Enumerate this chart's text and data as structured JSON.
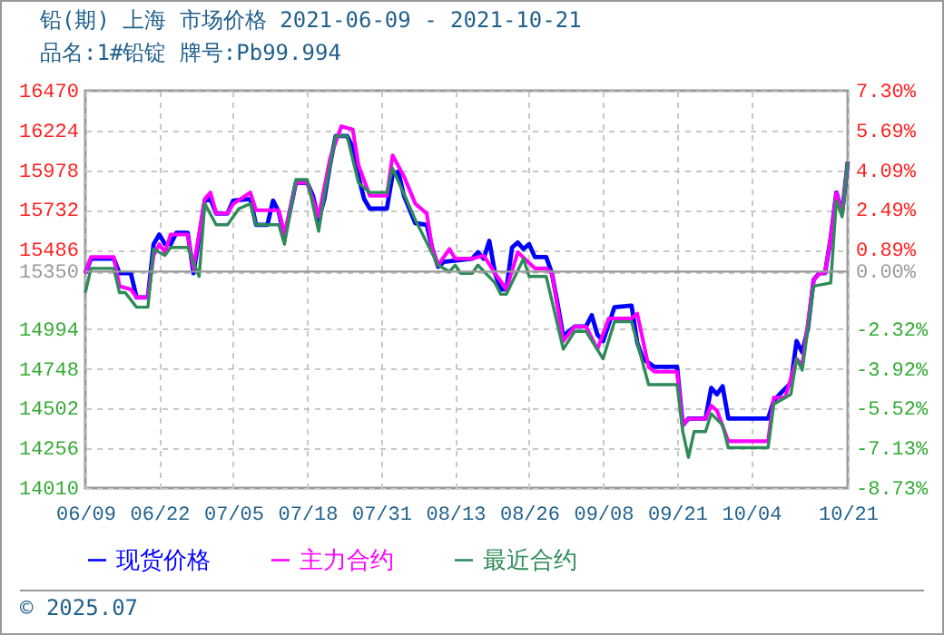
{
  "chart_data": {
    "type": "line",
    "title": "铅(期) 上海 市场价格 2021-06-09 - 2021-10-21",
    "subtitle": "品名:1#铅锭 牌号:Pb99.994",
    "xlim": [
      "2021-06-09",
      "2021-10-21"
    ],
    "xticks": [
      {
        "value": "2021-06-09",
        "label": "06/09"
      },
      {
        "value": "2021-06-22",
        "label": "06/22"
      },
      {
        "value": "2021-07-05",
        "label": "07/05"
      },
      {
        "value": "2021-07-18",
        "label": "07/18"
      },
      {
        "value": "2021-07-31",
        "label": "07/31"
      },
      {
        "value": "2021-08-13",
        "label": "08/13"
      },
      {
        "value": "2021-08-26",
        "label": "08/26"
      },
      {
        "value": "2021-09-08",
        "label": "09/08"
      },
      {
        "value": "2021-09-21",
        "label": "09/21"
      },
      {
        "value": "2021-10-04",
        "label": "10/04"
      },
      {
        "value": "2021-10-21",
        "label": "10/21"
      }
    ],
    "ylim": [
      14010,
      16470
    ],
    "yticks": [
      14010,
      14256,
      14502,
      14748,
      14994,
      15350,
      15486,
      15732,
      15978,
      16224,
      16470
    ],
    "y2lim": [
      -8.73,
      7.3
    ],
    "y2ticks": [
      {
        "value": -8.73,
        "label": "-8.73%"
      },
      {
        "value": -7.13,
        "label": "-7.13%"
      },
      {
        "value": -5.52,
        "label": "-5.52%"
      },
      {
        "value": -3.92,
        "label": "-3.92%"
      },
      {
        "value": -2.32,
        "label": "-2.32%"
      },
      {
        "value": 0,
        "label": "0.00%"
      },
      {
        "value": 0.89,
        "label": "0.89%"
      },
      {
        "value": 2.49,
        "label": "2.49%"
      },
      {
        "value": 4.09,
        "label": "4.09%"
      },
      {
        "value": 5.69,
        "label": "5.69%"
      },
      {
        "value": 7.3,
        "label": "7.30%"
      }
    ],
    "grid": true,
    "legend": "bottom",
    "ref_lines": [
      {
        "axis": "y",
        "value": 15350,
        "color": "#999999"
      }
    ],
    "annotations": [
      "© 2025.07"
    ],
    "series": [
      {
        "name": "现货价格",
        "color": "#0000ff",
        "x": [
          "2021-06-09",
          "2021-06-10",
          "2021-06-14",
          "2021-06-15",
          "2021-06-17",
          "2021-06-18",
          "2021-06-20",
          "2021-06-21",
          "2021-06-22",
          "2021-06-23",
          "2021-06-24",
          "2021-06-25",
          "2021-06-27",
          "2021-06-28",
          "2021-06-30",
          "2021-07-01",
          "2021-07-02",
          "2021-07-04",
          "2021-07-05",
          "2021-07-08",
          "2021-07-09",
          "2021-07-11",
          "2021-07-12",
          "2021-07-13",
          "2021-07-14",
          "2021-07-16",
          "2021-07-18",
          "2021-07-19",
          "2021-07-20",
          "2021-07-21",
          "2021-07-22",
          "2021-07-23",
          "2021-07-25",
          "2021-07-26",
          "2021-07-27",
          "2021-07-28",
          "2021-07-29",
          "2021-08-01",
          "2021-08-02",
          "2021-08-03",
          "2021-08-04",
          "2021-08-06",
          "2021-08-08",
          "2021-08-09",
          "2021-08-10",
          "2021-08-11",
          "2021-08-16",
          "2021-08-17",
          "2021-08-18",
          "2021-08-19",
          "2021-08-20",
          "2021-08-21",
          "2021-08-22",
          "2021-08-23",
          "2021-08-24",
          "2021-08-25",
          "2021-08-26",
          "2021-08-27",
          "2021-08-29",
          "2021-08-30",
          "2021-08-31",
          "2021-09-01",
          "2021-09-03",
          "2021-09-05",
          "2021-09-06",
          "2021-09-07",
          "2021-09-08",
          "2021-09-10",
          "2021-09-13",
          "2021-09-14",
          "2021-09-15",
          "2021-09-17",
          "2021-09-21",
          "2021-09-22",
          "2021-09-23",
          "2021-09-26",
          "2021-09-27",
          "2021-09-28",
          "2021-09-29",
          "2021-09-30",
          "2021-10-07",
          "2021-10-08",
          "2021-10-09",
          "2021-10-11",
          "2021-10-12",
          "2021-10-13",
          "2021-10-14",
          "2021-10-15",
          "2021-10-16",
          "2021-10-17",
          "2021-10-18",
          "2021-10-19",
          "2021-10-20",
          "2021-10-21"
        ],
        "values": [
          15340,
          15430,
          15430,
          15340,
          15340,
          15190,
          15190,
          15520,
          15580,
          15520,
          15520,
          15590,
          15590,
          15340,
          15790,
          15800,
          15710,
          15710,
          15790,
          15800,
          15640,
          15640,
          15790,
          15720,
          15560,
          15900,
          15900,
          15820,
          15670,
          15800,
          16010,
          16190,
          16190,
          16120,
          15940,
          15800,
          15740,
          15740,
          15950,
          15970,
          15820,
          15650,
          15640,
          15490,
          15380,
          15410,
          15430,
          15470,
          15430,
          15540,
          15340,
          15240,
          15240,
          15500,
          15530,
          15490,
          15520,
          15440,
          15440,
          15340,
          15150,
          14950,
          15010,
          15010,
          15080,
          14960,
          14920,
          15130,
          15140,
          14910,
          14810,
          14760,
          14760,
          14400,
          14440,
          14440,
          14630,
          14590,
          14640,
          14440,
          14440,
          14550,
          14590,
          14660,
          14920,
          14850,
          15000,
          15300,
          15340,
          15340,
          15560,
          15840,
          15710,
          16030
        ]
      },
      {
        "name": "主力合约",
        "color": "#ff00ff",
        "x": [
          "2021-06-09",
          "2021-06-10",
          "2021-06-14",
          "2021-06-15",
          "2021-06-17",
          "2021-06-18",
          "2021-06-20",
          "2021-06-21",
          "2021-06-22",
          "2021-06-23",
          "2021-06-24",
          "2021-06-27",
          "2021-06-28",
          "2021-06-30",
          "2021-07-01",
          "2021-07-02",
          "2021-07-04",
          "2021-07-05",
          "2021-07-08",
          "2021-07-09",
          "2021-07-13",
          "2021-07-14",
          "2021-07-16",
          "2021-07-18",
          "2021-07-20",
          "2021-07-22",
          "2021-07-24",
          "2021-07-26",
          "2021-07-27",
          "2021-07-29",
          "2021-08-01",
          "2021-08-02",
          "2021-08-04",
          "2021-08-06",
          "2021-08-08",
          "2021-08-09",
          "2021-08-10",
          "2021-08-12",
          "2021-08-13",
          "2021-08-16",
          "2021-08-18",
          "2021-08-20",
          "2021-08-22",
          "2021-08-24",
          "2021-08-27",
          "2021-08-29",
          "2021-08-30",
          "2021-09-01",
          "2021-09-03",
          "2021-09-05",
          "2021-09-07",
          "2021-09-09",
          "2021-09-13",
          "2021-09-14",
          "2021-09-16",
          "2021-09-17",
          "2021-09-21",
          "2021-09-22",
          "2021-09-23",
          "2021-09-26",
          "2021-09-27",
          "2021-09-28",
          "2021-09-30",
          "2021-10-07",
          "2021-10-08",
          "2021-10-10",
          "2021-10-12",
          "2021-10-13",
          "2021-10-15",
          "2021-10-16",
          "2021-10-17",
          "2021-10-18",
          "2021-10-19",
          "2021-10-20",
          "2021-10-21"
        ],
        "values": [
          15340,
          15440,
          15440,
          15260,
          15240,
          15190,
          15190,
          15450,
          15520,
          15470,
          15580,
          15580,
          15370,
          15800,
          15840,
          15710,
          15710,
          15770,
          15840,
          15730,
          15730,
          15580,
          15900,
          15900,
          15690,
          16050,
          16250,
          16230,
          16010,
          15820,
          15820,
          16070,
          15940,
          15770,
          15710,
          15490,
          15390,
          15490,
          15430,
          15430,
          15450,
          15340,
          15240,
          15470,
          15370,
          15370,
          15340,
          14920,
          15010,
          15010,
          14870,
          15060,
          15060,
          15090,
          14760,
          14730,
          14730,
          14400,
          14440,
          14440,
          14520,
          14490,
          14300,
          14300,
          14570,
          14570,
          14810,
          14770,
          15300,
          15340,
          15340,
          15560,
          15840,
          15710,
          16030
        ]
      },
      {
        "name": "最近合约",
        "color": "#2e8b57",
        "x": [
          "2021-06-09",
          "2021-06-10",
          "2021-06-14",
          "2021-06-15",
          "2021-06-16",
          "2021-06-18",
          "2021-06-20",
          "2021-06-21",
          "2021-06-23",
          "2021-06-24",
          "2021-06-27",
          "2021-06-29",
          "2021-06-30",
          "2021-07-02",
          "2021-07-04",
          "2021-07-06",
          "2021-07-08",
          "2021-07-09",
          "2021-07-13",
          "2021-07-14",
          "2021-07-16",
          "2021-07-18",
          "2021-07-20",
          "2021-07-21",
          "2021-07-23",
          "2021-07-25",
          "2021-07-27",
          "2021-07-29",
          "2021-08-01",
          "2021-08-02",
          "2021-08-06",
          "2021-08-10",
          "2021-08-12",
          "2021-08-13",
          "2021-08-14",
          "2021-08-16",
          "2021-08-17",
          "2021-08-20",
          "2021-08-21",
          "2021-08-22",
          "2021-08-25",
          "2021-08-26",
          "2021-08-29",
          "2021-09-01",
          "2021-09-03",
          "2021-09-05",
          "2021-09-08",
          "2021-09-10",
          "2021-09-13",
          "2021-09-16",
          "2021-09-21",
          "2021-09-22",
          "2021-09-23",
          "2021-09-24",
          "2021-09-26",
          "2021-09-27",
          "2021-09-29",
          "2021-09-30",
          "2021-10-07",
          "2021-10-08",
          "2021-10-11",
          "2021-10-12",
          "2021-10-13",
          "2021-10-14",
          "2021-10-15",
          "2021-10-18",
          "2021-10-19",
          "2021-10-20",
          "2021-10-21"
        ],
        "values": [
          15220,
          15370,
          15370,
          15220,
          15220,
          15130,
          15130,
          15490,
          15450,
          15500,
          15500,
          15320,
          15770,
          15640,
          15640,
          15740,
          15770,
          15640,
          15640,
          15520,
          15920,
          15920,
          15600,
          15820,
          16190,
          16190,
          15900,
          15840,
          15840,
          15990,
          15670,
          15390,
          15350,
          15390,
          15340,
          15340,
          15390,
          15280,
          15210,
          15210,
          15430,
          15320,
          15320,
          14870,
          14980,
          14980,
          14810,
          15040,
          15040,
          14650,
          14650,
          14360,
          14200,
          14360,
          14360,
          14470,
          14400,
          14260,
          14260,
          14530,
          14590,
          14810,
          14740,
          15000,
          15260,
          15280,
          15790,
          15690,
          16030
        ]
      }
    ]
  }
}
